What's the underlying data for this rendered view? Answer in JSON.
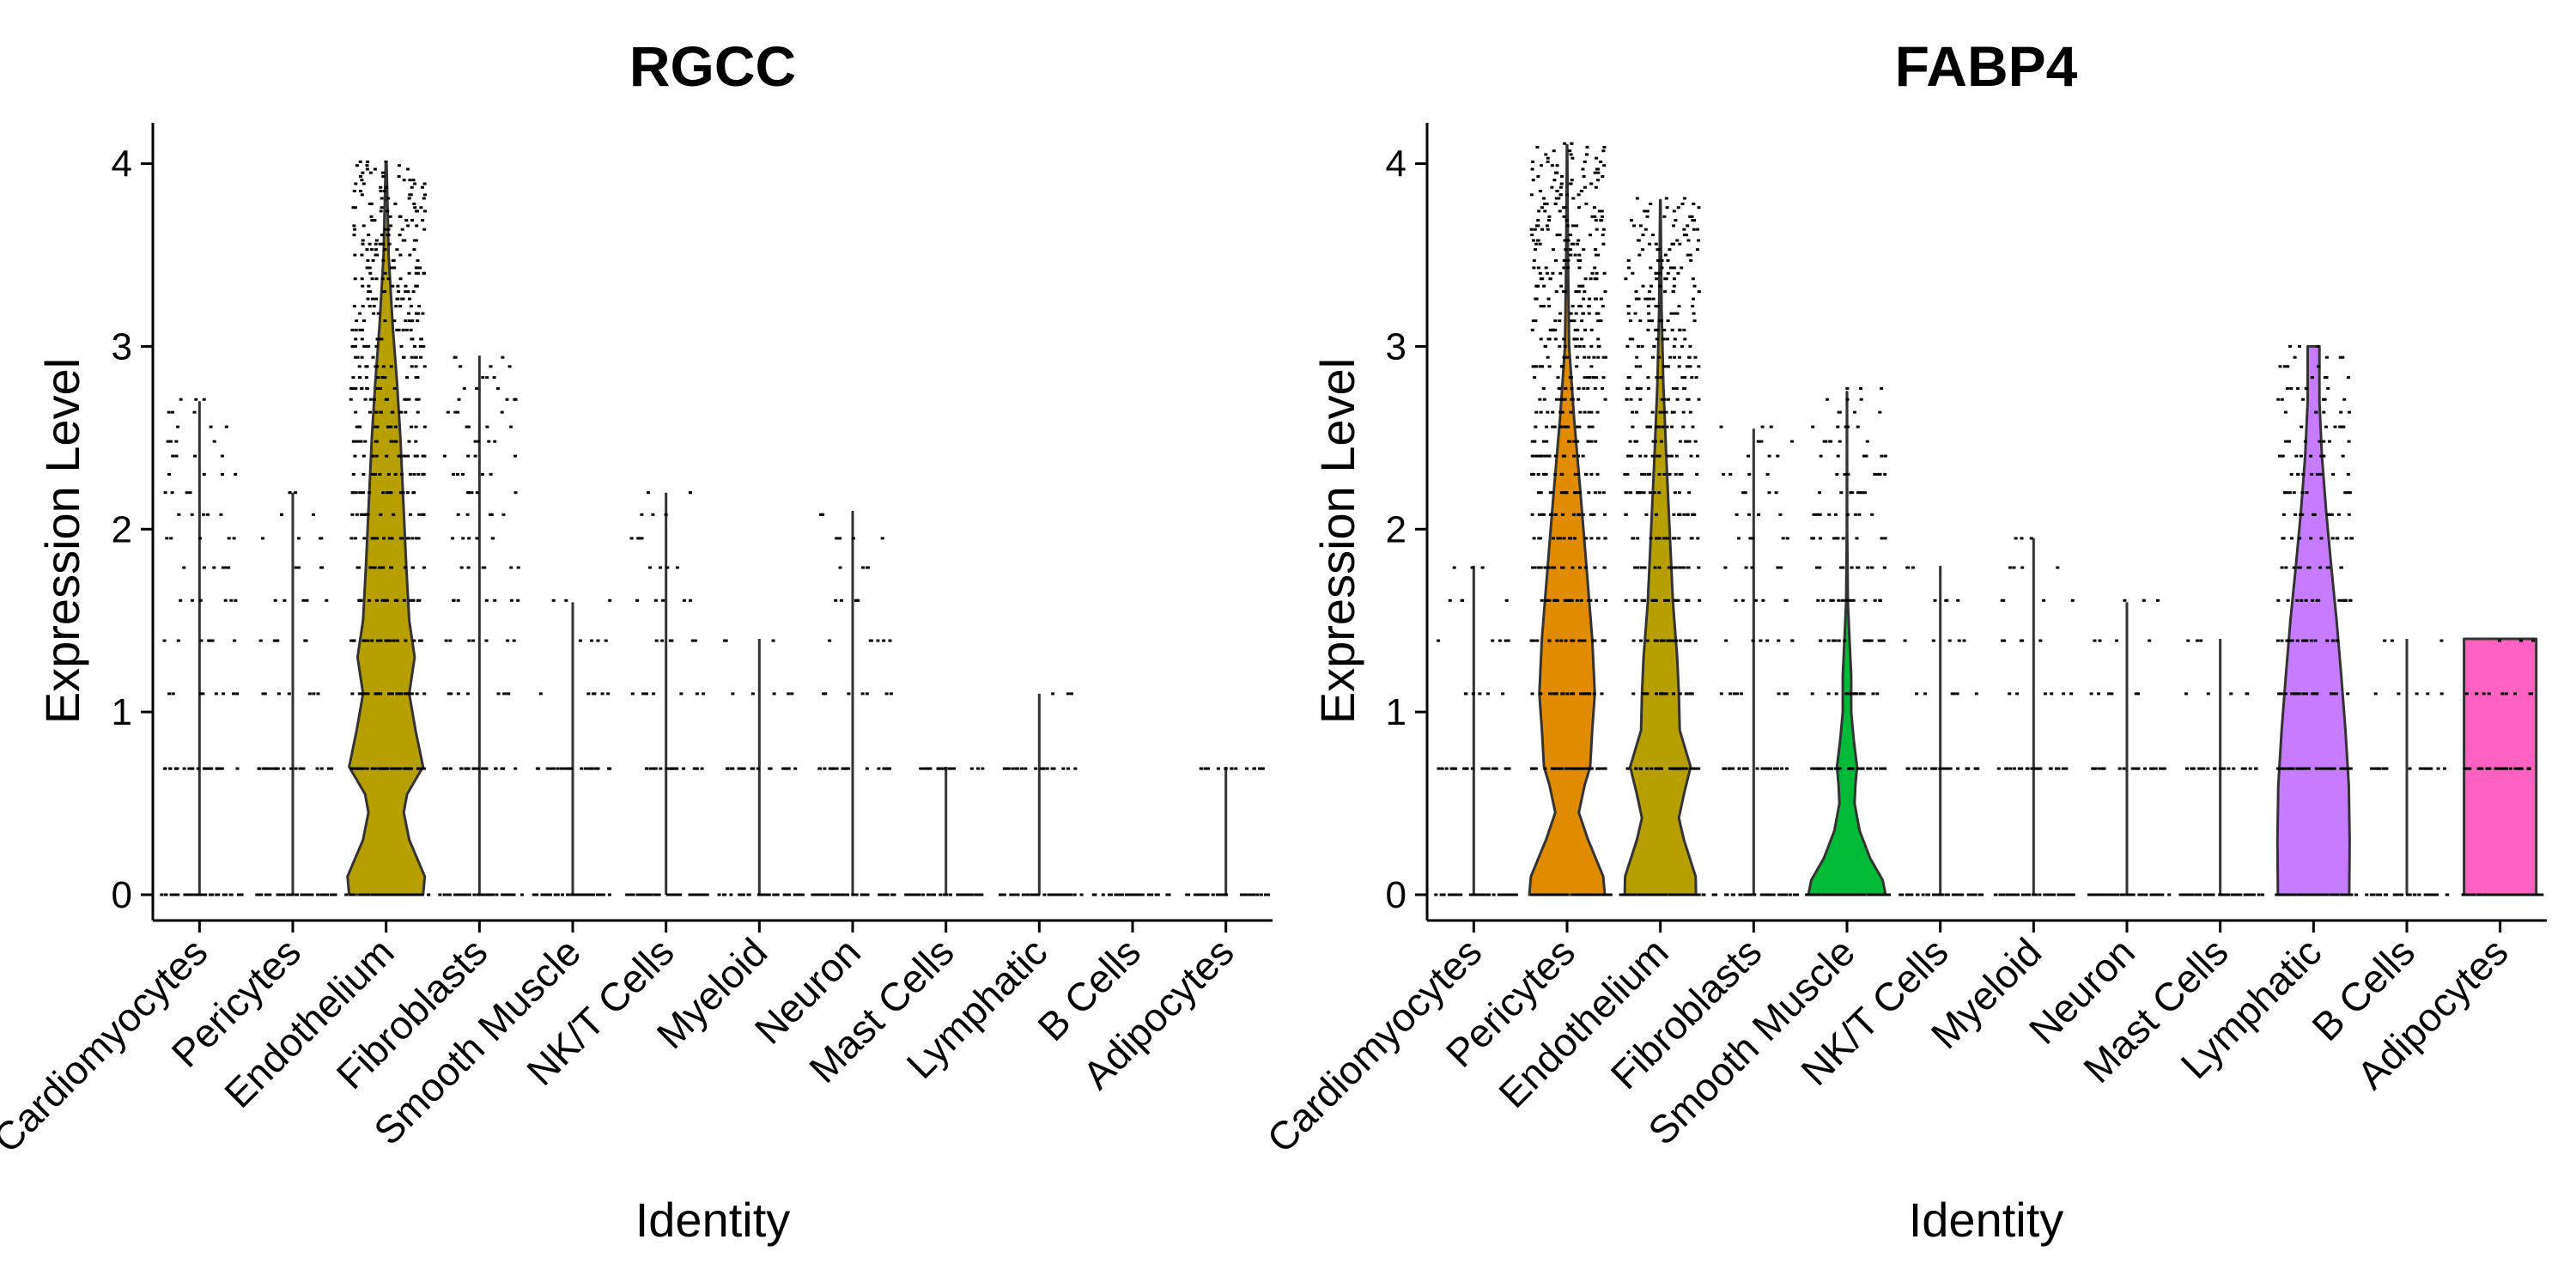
{
  "chart_data": [
    {
      "type": "violin",
      "title": "RGCC",
      "xlabel": "Identity",
      "ylabel": "Expression Level",
      "ylim": [
        0,
        4.2
      ],
      "yticks": [
        0,
        1,
        2,
        3,
        4
      ],
      "grid": false,
      "legend": "none",
      "categories": [
        "Cardiomyocytes",
        "Pericytes",
        "Endothelium",
        "Fibroblasts",
        "Smooth Muscle",
        "NK/T Cells",
        "Myeloid",
        "Neuron",
        "Mast Cells",
        "Lymphatic",
        "B Cells",
        "Adipocytes"
      ],
      "series": [
        {
          "category": "Cardiomyocytes",
          "max": 2.7,
          "color": "#000000",
          "violin": "line"
        },
        {
          "category": "Pericytes",
          "max": 2.2,
          "color": "#000000",
          "violin": "line"
        },
        {
          "category": "Endothelium",
          "max": 4.0,
          "color": "#B79F00",
          "violin": "filled"
        },
        {
          "category": "Fibroblasts",
          "max": 2.95,
          "color": "#000000",
          "violin": "line"
        },
        {
          "category": "Smooth Muscle",
          "max": 1.6,
          "color": "#000000",
          "violin": "line"
        },
        {
          "category": "NK/T Cells",
          "max": 2.2,
          "color": "#000000",
          "violin": "line"
        },
        {
          "category": "Myeloid",
          "max": 1.4,
          "color": "#000000",
          "violin": "line"
        },
        {
          "category": "Neuron",
          "max": 2.1,
          "color": "#000000",
          "violin": "line"
        },
        {
          "category": "Mast Cells",
          "max": 0.7,
          "color": "#000000",
          "violin": "line"
        },
        {
          "category": "Lymphatic",
          "max": 1.1,
          "color": "#000000",
          "violin": "line"
        },
        {
          "category": "B Cells",
          "max": 0.0,
          "color": "#000000",
          "violin": "line"
        },
        {
          "category": "Adipocytes",
          "max": 0.7,
          "color": "#000000",
          "violin": "line"
        }
      ]
    },
    {
      "type": "violin",
      "title": "FABP4",
      "xlabel": "Identity",
      "ylabel": "Expression Level",
      "ylim": [
        0,
        4.2
      ],
      "yticks": [
        0,
        1,
        2,
        3,
        4
      ],
      "grid": false,
      "legend": "none",
      "categories": [
        "Cardiomyocytes",
        "Pericytes",
        "Endothelium",
        "Fibroblasts",
        "Smooth Muscle",
        "NK/T Cells",
        "Myeloid",
        "Neuron",
        "Mast Cells",
        "Lymphatic",
        "B Cells",
        "Adipocytes"
      ],
      "series": [
        {
          "category": "Cardiomyocytes",
          "max": 1.8,
          "color": "#000000",
          "violin": "line"
        },
        {
          "category": "Pericytes",
          "max": 4.1,
          "color": "#E08B00",
          "violin": "filled"
        },
        {
          "category": "Endothelium",
          "max": 3.8,
          "color": "#B79F00",
          "violin": "filled"
        },
        {
          "category": "Fibroblasts",
          "max": 2.55,
          "color": "#000000",
          "violin": "line"
        },
        {
          "category": "Smooth Muscle",
          "max": 2.75,
          "color": "#00BA38",
          "violin": "filled"
        },
        {
          "category": "NK/T Cells",
          "max": 1.8,
          "color": "#000000",
          "violin": "line"
        },
        {
          "category": "Myeloid",
          "max": 1.95,
          "color": "#000000",
          "violin": "line"
        },
        {
          "category": "Neuron",
          "max": 1.6,
          "color": "#000000",
          "violin": "line"
        },
        {
          "category": "Mast Cells",
          "max": 1.4,
          "color": "#000000",
          "violin": "line"
        },
        {
          "category": "Lymphatic",
          "max": 3.0,
          "color": "#C77CFF",
          "violin": "filled"
        },
        {
          "category": "B Cells",
          "max": 1.4,
          "color": "#000000",
          "violin": "line"
        },
        {
          "category": "Adipocytes",
          "max": 1.4,
          "color": "#FF61C3",
          "violin": "filled"
        }
      ]
    }
  ]
}
